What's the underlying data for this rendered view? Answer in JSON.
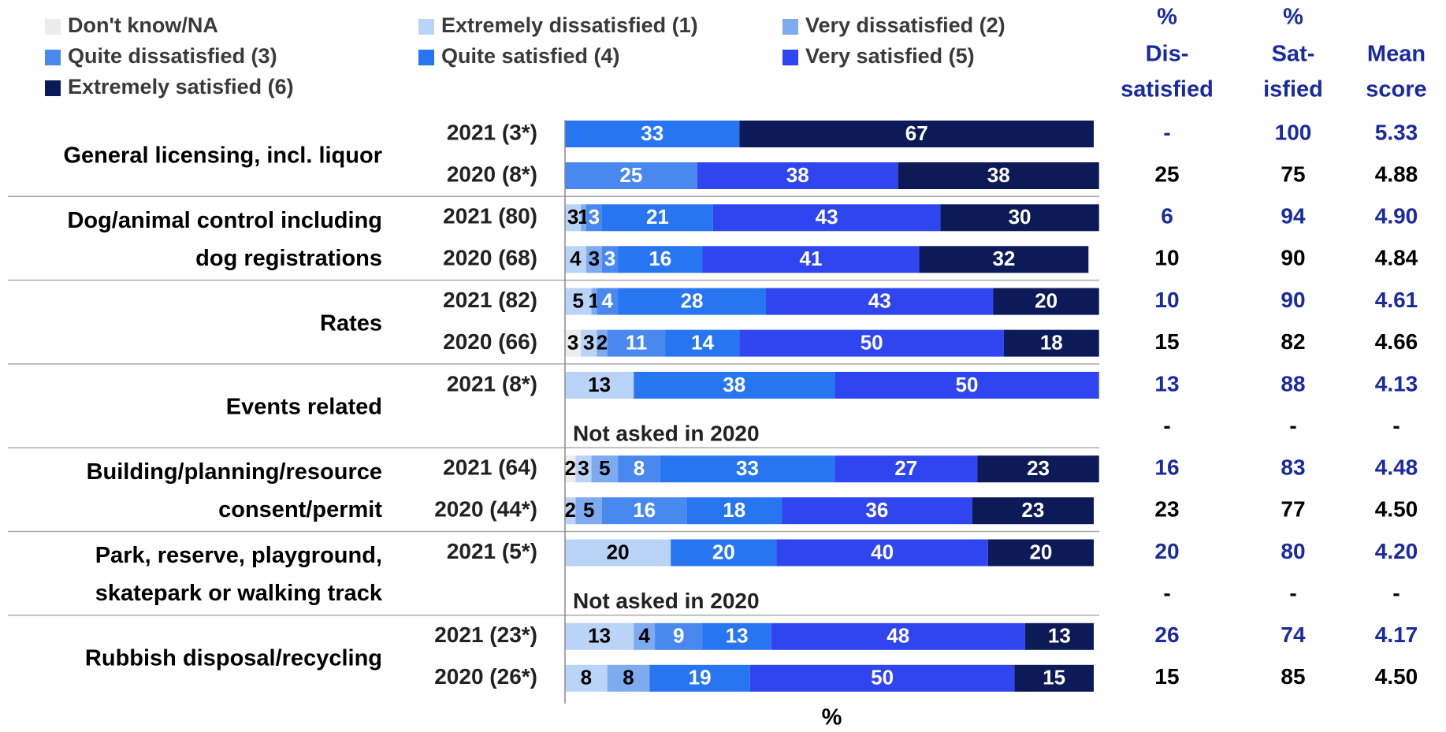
{
  "chart_data": {
    "type": "bar",
    "orientation": "horizontal",
    "stacked": "100%",
    "xlabel": "%",
    "xlim": [
      0,
      100
    ],
    "colors": {
      "dont_know": "#ececec",
      "extremely_dissatisfied": "#b9d4f7",
      "very_dissatisfied": "#7eaaf0",
      "quite_dissatisfied": "#4888ef",
      "quite_satisfied": "#2775f1",
      "very_satisfied": "#2f45f0",
      "extremely_satisfied": "#0c1a58",
      "current_year_text": "#1a2aa0",
      "previous_year_text": "#000000"
    },
    "legend": {
      "placement": "top",
      "entries": [
        {
          "key": "dont_know",
          "label": "Don't know/NA"
        },
        {
          "key": "extremely_dissatisfied",
          "label": "Extremely dissatisfied (1)"
        },
        {
          "key": "very_dissatisfied",
          "label": "Very dissatisfied (2)"
        },
        {
          "key": "quite_dissatisfied",
          "label": "Quite dissatisfied (3)"
        },
        {
          "key": "quite_satisfied",
          "label": "Quite satisfied (4)"
        },
        {
          "key": "very_satisfied",
          "label": "Very satisfied (5)"
        },
        {
          "key": "extremely_satisfied",
          "label": "Extremely satisfied (6)"
        }
      ]
    },
    "column_headers": {
      "dissatisfied": [
        "%",
        "Dis-",
        "satisfied"
      ],
      "satisfied": [
        "%",
        "Sat-",
        "isfied"
      ],
      "mean": [
        "Mean",
        "score"
      ]
    },
    "series_order": [
      "dont_know",
      "extremely_dissatisfied",
      "very_dissatisfied",
      "quite_dissatisfied",
      "quite_satisfied",
      "very_satisfied",
      "extremely_satisfied"
    ],
    "groups": [
      {
        "name": [
          "General licensing, incl. liquor"
        ],
        "rows": [
          {
            "label": "2021 (3*)",
            "current": true,
            "values": [
              0,
              0,
              0,
              0,
              33,
              0,
              67
            ],
            "labels": [
              "",
              "",
              "",
              "",
              "33",
              "",
              "67"
            ],
            "dissatisfied": "-",
            "satisfied": "100",
            "mean": "5.33"
          },
          {
            "label": "2020 (8*)",
            "current": false,
            "values": [
              0,
              0,
              0,
              25,
              0,
              38,
              38
            ],
            "labels": [
              "",
              "",
              "",
              "25",
              "",
              "38",
              "38"
            ],
            "dissatisfied": "25",
            "satisfied": "75",
            "mean": "4.88"
          }
        ]
      },
      {
        "name": [
          "Dog/animal control including",
          "dog registrations"
        ],
        "rows": [
          {
            "label": "2021 (80)",
            "current": true,
            "values": [
              0,
              3,
              1,
              3,
              21,
              43,
              30
            ],
            "labels": [
              "",
              "3",
              "1",
              "3",
              "21",
              "43",
              "30"
            ],
            "dissatisfied": "6",
            "satisfied": "94",
            "mean": "4.90"
          },
          {
            "label": "2020 (68)",
            "current": false,
            "values": [
              0,
              4,
              3,
              3,
              16,
              41,
              32
            ],
            "labels": [
              "",
              "4",
              "3",
              "3",
              "16",
              "41",
              "32"
            ],
            "dissatisfied": "10",
            "satisfied": "90",
            "mean": "4.84"
          }
        ]
      },
      {
        "name": [
          "Rates"
        ],
        "rows": [
          {
            "label": "2021 (82)",
            "current": true,
            "values": [
              0,
              5,
              1,
              4,
              28,
              43,
              20
            ],
            "labels": [
              "",
              "5",
              "1",
              "4",
              "28",
              "43",
              "20"
            ],
            "dissatisfied": "10",
            "satisfied": "90",
            "mean": "4.61"
          },
          {
            "label": "2020 (66)",
            "current": false,
            "values": [
              3,
              3,
              2,
              11,
              14,
              50,
              18
            ],
            "labels": [
              "3",
              "3",
              "2",
              "11",
              "14",
              "50",
              "18"
            ],
            "dissatisfied": "15",
            "satisfied": "82",
            "mean": "4.66"
          }
        ]
      },
      {
        "name": [
          "Events related"
        ],
        "rows": [
          {
            "label": "2021 (8*)",
            "current": true,
            "values": [
              0,
              13,
              0,
              0,
              38,
              50,
              0
            ],
            "labels": [
              "",
              "13",
              "",
              "",
              "38",
              "50",
              ""
            ],
            "dissatisfied": "13",
            "satisfied": "88",
            "mean": "4.13"
          },
          {
            "label": "",
            "current": false,
            "note": "Not asked in 2020",
            "values": [],
            "labels": [],
            "dissatisfied": "-",
            "satisfied": "-",
            "mean": "-"
          }
        ]
      },
      {
        "name": [
          "Building/planning/resource",
          "consent/permit"
        ],
        "rows": [
          {
            "label": "2021 (64)",
            "current": true,
            "values": [
              2,
              3,
              5,
              8,
              33,
              27,
              23
            ],
            "labels": [
              "2",
              "3",
              "5",
              "8",
              "33",
              "27",
              "23"
            ],
            "dissatisfied": "16",
            "satisfied": "83",
            "mean": "4.48"
          },
          {
            "label": "2020 (44*)",
            "current": false,
            "values": [
              0,
              2,
              5,
              16,
              18,
              36,
              23
            ],
            "labels": [
              "",
              "2",
              "5",
              "16",
              "18",
              "36",
              "23"
            ],
            "dissatisfied": "23",
            "satisfied": "77",
            "mean": "4.50"
          }
        ]
      },
      {
        "name": [
          "Park, reserve, playground,",
          "skatepark or walking track"
        ],
        "rows": [
          {
            "label": "2021 (5*)",
            "current": true,
            "values": [
              0,
              20,
              0,
              0,
              20,
              40,
              20
            ],
            "labels": [
              "",
              "20",
              "",
              "",
              "20",
              "40",
              "20"
            ],
            "dissatisfied": "20",
            "satisfied": "80",
            "mean": "4.20"
          },
          {
            "label": "",
            "current": false,
            "note": "Not asked in 2020",
            "values": [],
            "labels": [],
            "dissatisfied": "-",
            "satisfied": "-",
            "mean": "-"
          }
        ]
      },
      {
        "name": [
          "Rubbish disposal/recycling"
        ],
        "rows": [
          {
            "label": "2021 (23*)",
            "current": true,
            "values": [
              0,
              13,
              4,
              9,
              13,
              48,
              13
            ],
            "labels": [
              "",
              "13",
              "4",
              "9",
              "13",
              "48",
              "13"
            ],
            "dissatisfied": "26",
            "satisfied": "74",
            "mean": "4.17"
          },
          {
            "label": "2020 (26*)",
            "current": false,
            "values": [
              0,
              8,
              8,
              0,
              19,
              50,
              15
            ],
            "labels": [
              "",
              "8",
              "8",
              "",
              "19",
              "50",
              "15"
            ],
            "dissatisfied": "15",
            "satisfied": "85",
            "mean": "4.50"
          }
        ]
      }
    ]
  }
}
